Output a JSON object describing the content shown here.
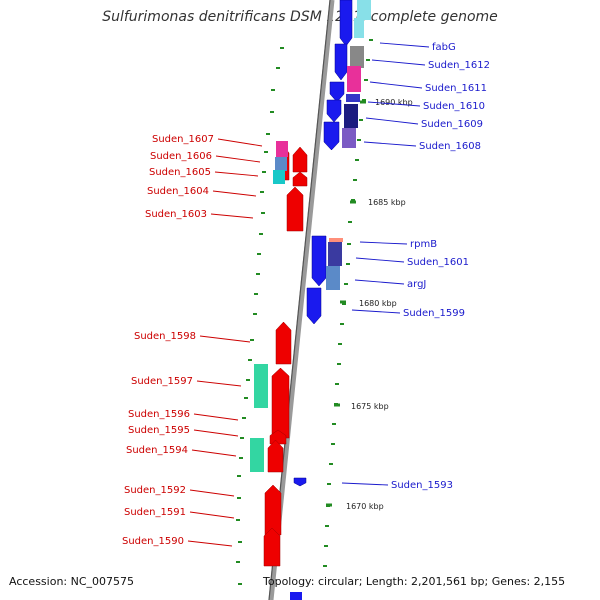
{
  "title": "Sulfurimonas denitrificans DSM 1251, complete genome",
  "footer": {
    "accession": "Accession: NC_007575",
    "summary": "Topology: circular; Length: 2,201,561 bp; Genes: 2,155"
  },
  "colors": {
    "forward_gene": "#ee0000",
    "reverse_gene": "#1a1aee",
    "backbone": "#9a9a9a",
    "tick": "#228b22",
    "forward_label": "#cc0000",
    "reverse_label": "#1a1acc",
    "feature_teal": "#33d6a2",
    "feature_magenta": "#e8309a",
    "feature_steelblue": "#5b8ac8",
    "feature_purple": "#7b5bc4",
    "feature_cyan": "#88e0e8",
    "feature_grey": "#888888"
  },
  "scale_labels": [
    "1690 kbp",
    "1685 kbp",
    "1680 kbp",
    "1675 kbp",
    "1670 kbp"
  ],
  "forward_labels": [
    "Suden_1607",
    "Suden_1606",
    "Suden_1605",
    "Suden_1604",
    "Suden_1603",
    "Suden_1598",
    "Suden_1597",
    "Suden_1596",
    "Suden_1595",
    "Suden_1594",
    "Suden_1592",
    "Suden_1591",
    "Suden_1590"
  ],
  "reverse_labels": [
    "fabG",
    "Suden_1612",
    "Suden_1611",
    "Suden_1610",
    "Suden_1609",
    "Suden_1608",
    "rpmB",
    "Suden_1601",
    "argJ",
    "Suden_1599",
    "Suden_1593"
  ]
}
